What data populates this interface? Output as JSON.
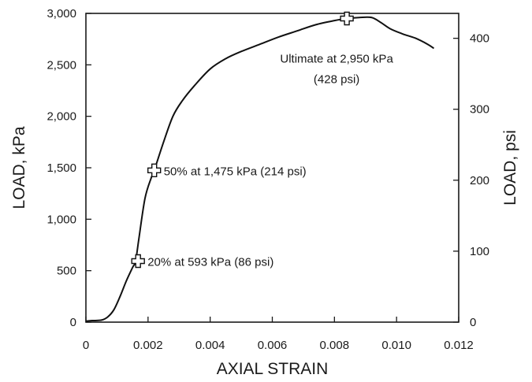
{
  "chart_data": {
    "type": "line",
    "xlabel": "AXIAL STRAIN",
    "ylabel": "LOAD, kPa",
    "y2label": "LOAD, psi",
    "xlim": [
      0,
      0.012
    ],
    "ylim": [
      0,
      3000
    ],
    "y2lim": [
      0,
      435.1
    ],
    "x_ticks": [
      "0",
      "0.002",
      "0.004",
      "0.006",
      "0.008",
      "0.010",
      "0.012"
    ],
    "x_tick_values": [
      0,
      0.002,
      0.004,
      0.006,
      0.008,
      0.01,
      0.012
    ],
    "y_ticks": [
      "0",
      "500",
      "1,000",
      "1,500",
      "2,000",
      "2,500",
      "3,000"
    ],
    "y_tick_values": [
      0,
      500,
      1000,
      1500,
      2000,
      2500,
      3000
    ],
    "y2_ticks": [
      "0",
      "100",
      "200",
      "300",
      "400"
    ],
    "y2_tick_values": [
      0,
      100,
      200,
      300,
      400
    ],
    "grid": false,
    "series": [
      {
        "x": [
          0,
          0.0002,
          0.0005,
          0.0007,
          0.0009,
          0.0011,
          0.0013,
          0.0015,
          0.0016,
          0.0017,
          0.0019,
          0.0021,
          0.0022,
          0.0025,
          0.0028,
          0.0031,
          0.0035,
          0.004,
          0.0045,
          0.005,
          0.0056,
          0.0062,
          0.0068,
          0.0074,
          0.008,
          0.0084,
          0.0088,
          0.0092,
          0.0095,
          0.0098,
          0.0102,
          0.0106,
          0.011,
          0.0112
        ],
        "y": [
          10,
          15,
          20,
          50,
          120,
          250,
          400,
          530,
          593,
          800,
          1200,
          1400,
          1475,
          1750,
          2000,
          2150,
          2300,
          2460,
          2560,
          2630,
          2700,
          2770,
          2830,
          2890,
          2930,
          2950,
          2960,
          2960,
          2910,
          2850,
          2800,
          2760,
          2700,
          2660
        ]
      }
    ],
    "annotations": [
      {
        "x": 0.00168,
        "y": 593,
        "text": "20% at 593 kPa (86 psi)"
      },
      {
        "x": 0.0022,
        "y": 1475,
        "text": "50% at 1,475 kPa (214 psi)"
      },
      {
        "x": 0.0084,
        "y": 2950,
        "text": "Ultimate at 2,950 kPa",
        "text2": "(428 psi)"
      }
    ]
  }
}
